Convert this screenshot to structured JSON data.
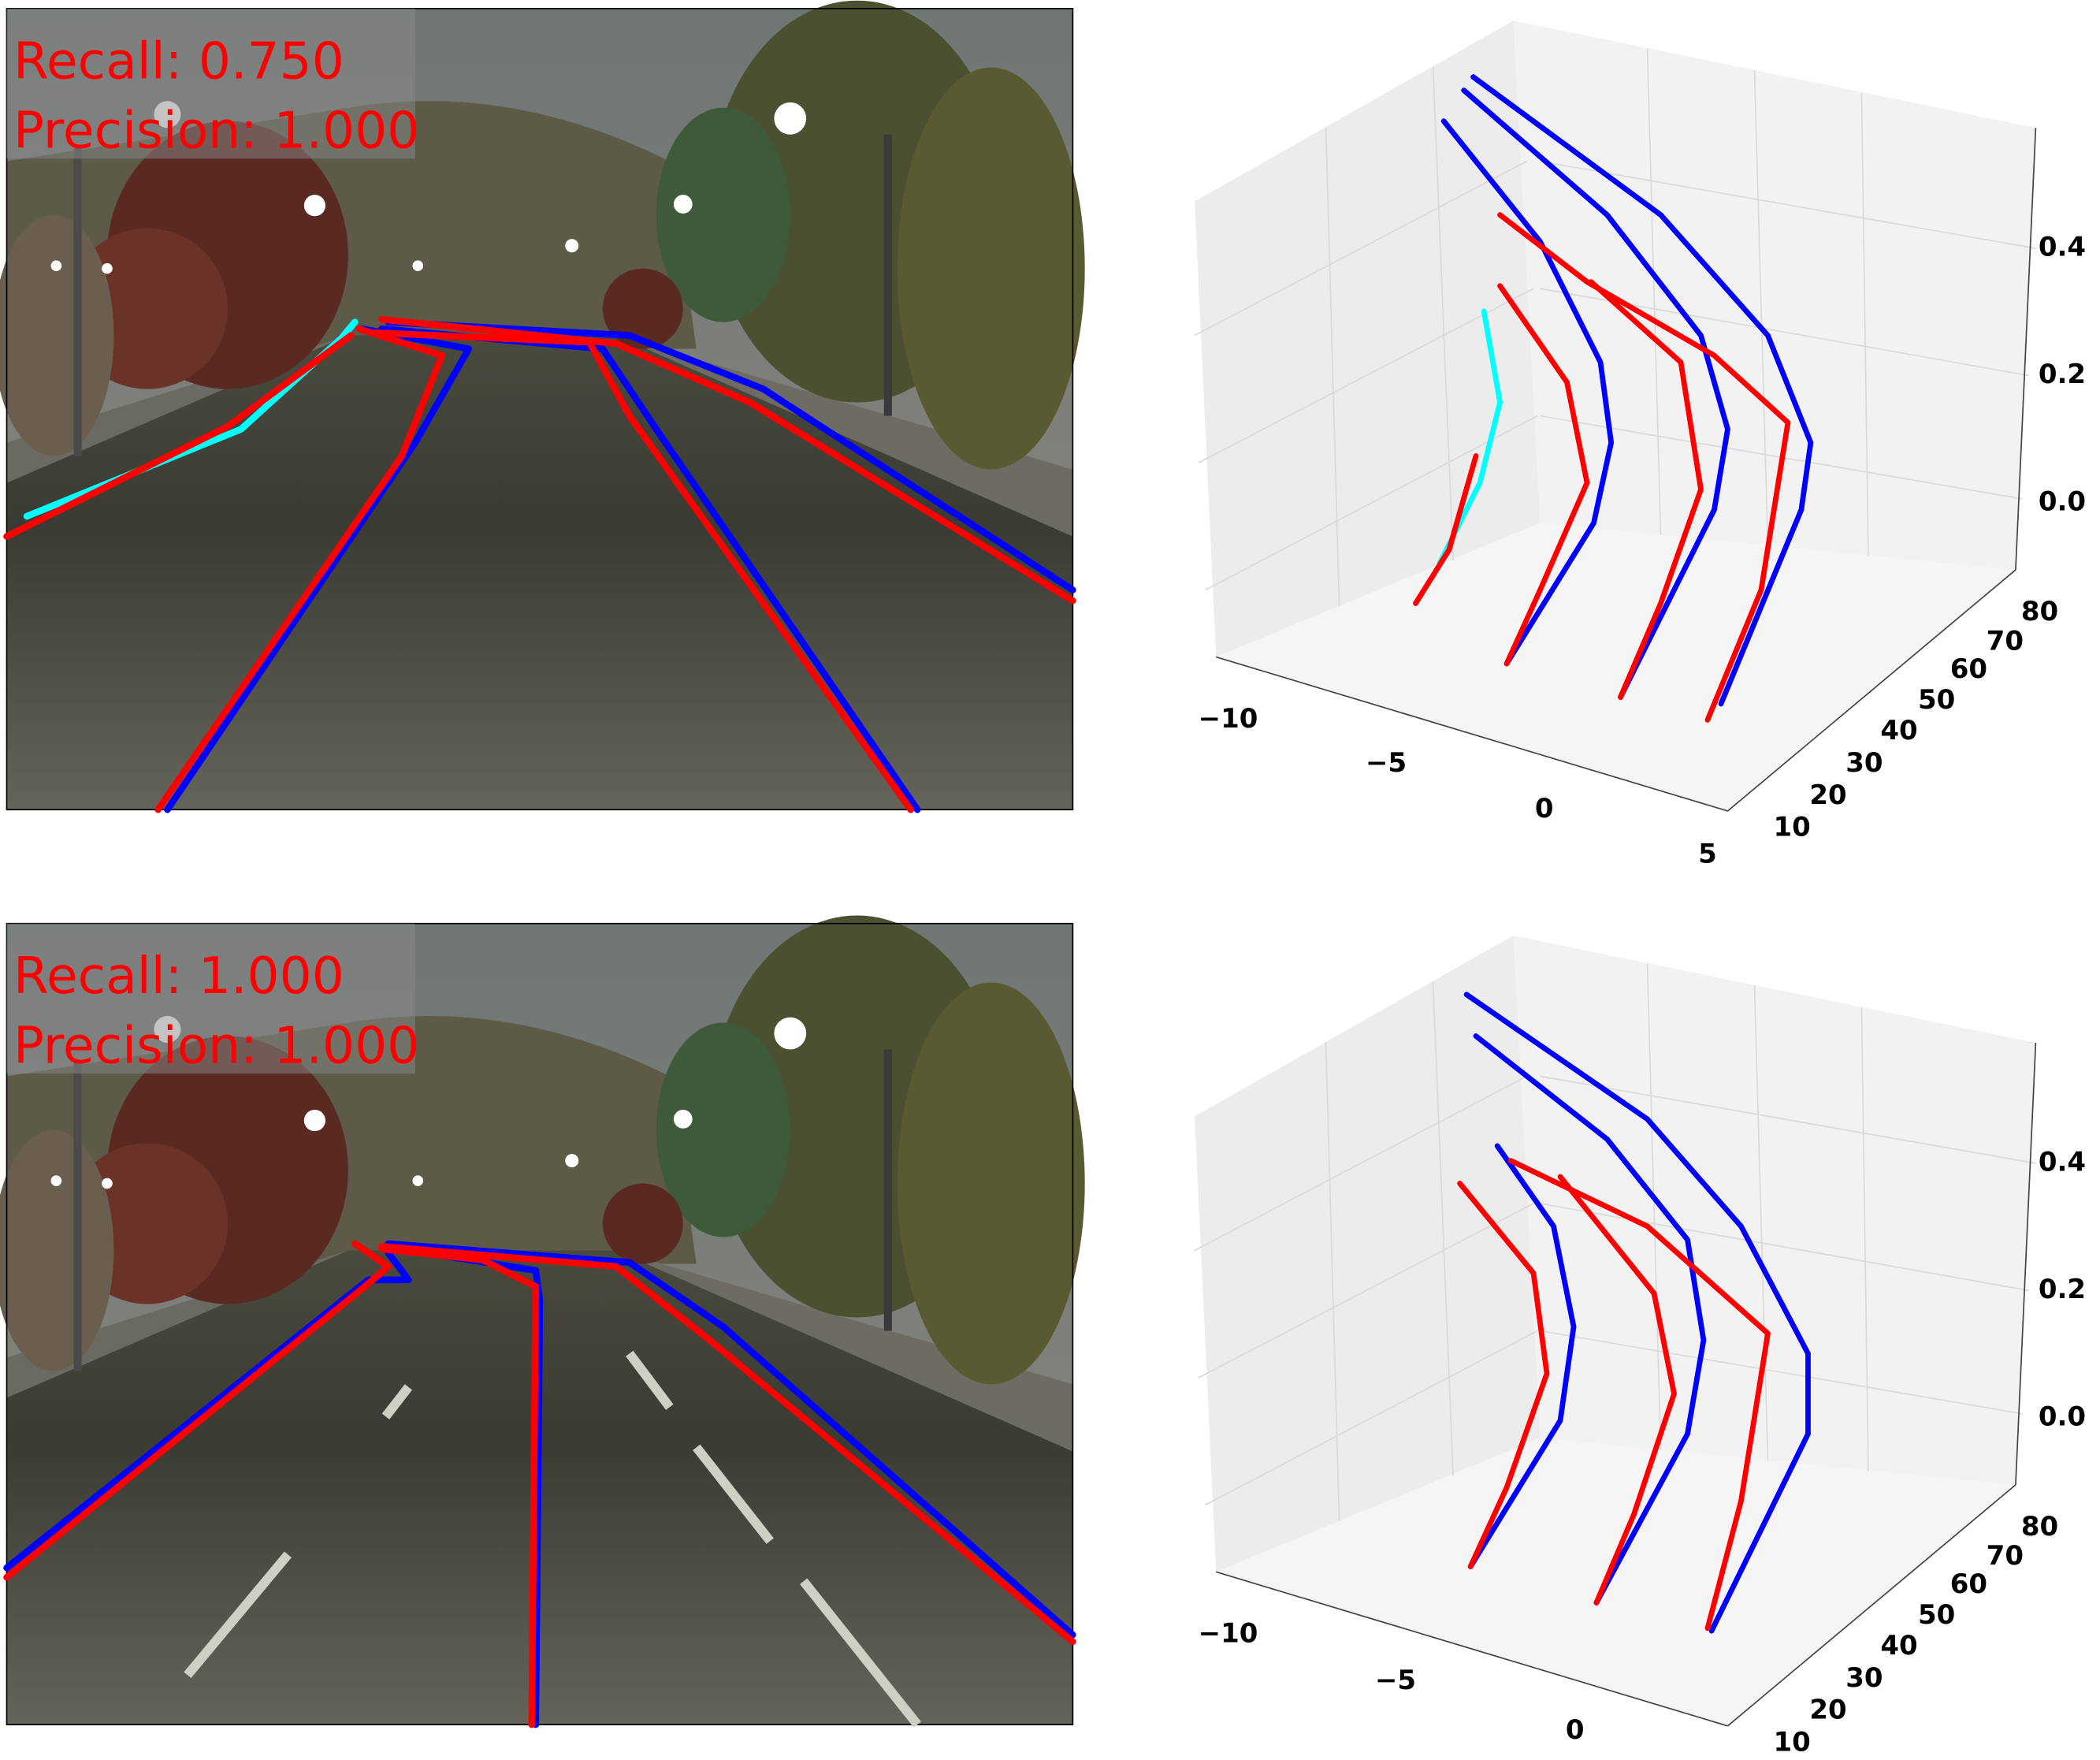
{
  "panels": [
    {
      "image": {
        "recall": "Recall: 0.750",
        "precision": "Precision: 1.000"
      },
      "plot": {
        "x_ticks": [
          "−10",
          "−5",
          "0",
          "5"
        ],
        "y_ticks": [
          "10",
          "20",
          "30",
          "40",
          "50",
          "60",
          "70",
          "80"
        ],
        "z_ticks": [
          "0.0",
          "0.2",
          "0.4"
        ]
      }
    },
    {
      "image": {
        "recall": "Recall: 1.000",
        "precision": "Precision: 1.000"
      },
      "plot": {
        "x_ticks": [
          "−10",
          "−5",
          "0"
        ],
        "y_ticks": [
          "10",
          "20",
          "30",
          "40",
          "50",
          "60",
          "70",
          "80"
        ],
        "z_ticks": [
          "0.0",
          "0.2",
          "0.4"
        ]
      }
    }
  ]
}
